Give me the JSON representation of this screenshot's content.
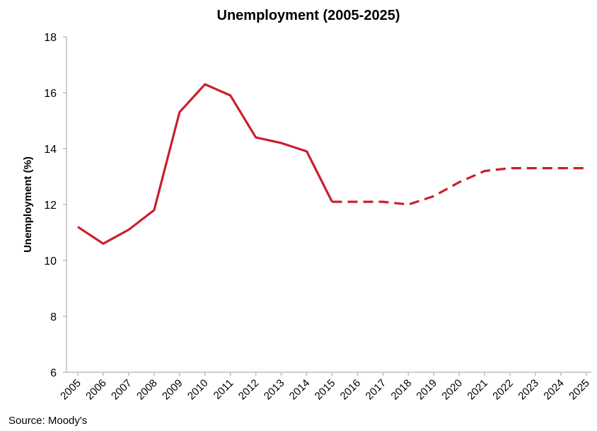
{
  "chart_data": {
    "type": "line",
    "title": "Unemployment (2005-2025)",
    "xlabel": "",
    "ylabel": "Unemployment (%)",
    "ylim": [
      6,
      18
    ],
    "yticks": [
      "6",
      "8",
      "10",
      "12",
      "14",
      "16",
      "18"
    ],
    "x": [
      "2005",
      "2006",
      "2007",
      "2008",
      "2009",
      "2010",
      "2011",
      "2012",
      "2013",
      "2014",
      "2015",
      "2016",
      "2017",
      "2018",
      "2019",
      "2020",
      "2021",
      "2022",
      "2023",
      "2024",
      "2025"
    ],
    "series": [
      {
        "style": "solid",
        "color": "#c8202f",
        "x": [
          "2005",
          "2006",
          "2007",
          "2008",
          "2009",
          "2010",
          "2011",
          "2012",
          "2013",
          "2014",
          "2015"
        ],
        "values": [
          11.2,
          10.6,
          11.1,
          11.8,
          15.3,
          16.3,
          15.9,
          14.4,
          14.2,
          13.9,
          12.1
        ]
      },
      {
        "style": "dashed",
        "color": "#c8202f",
        "x": [
          "2015",
          "2016",
          "2017",
          "2018",
          "2019",
          "2020",
          "2021",
          "2022",
          "2023",
          "2024",
          "2025"
        ],
        "values": [
          12.1,
          12.1,
          12.1,
          12.0,
          12.3,
          12.8,
          13.2,
          13.3,
          13.3,
          13.3,
          13.3
        ]
      }
    ],
    "grid": false,
    "legend": "none"
  },
  "footer": {
    "source": "Source: Moody's"
  }
}
